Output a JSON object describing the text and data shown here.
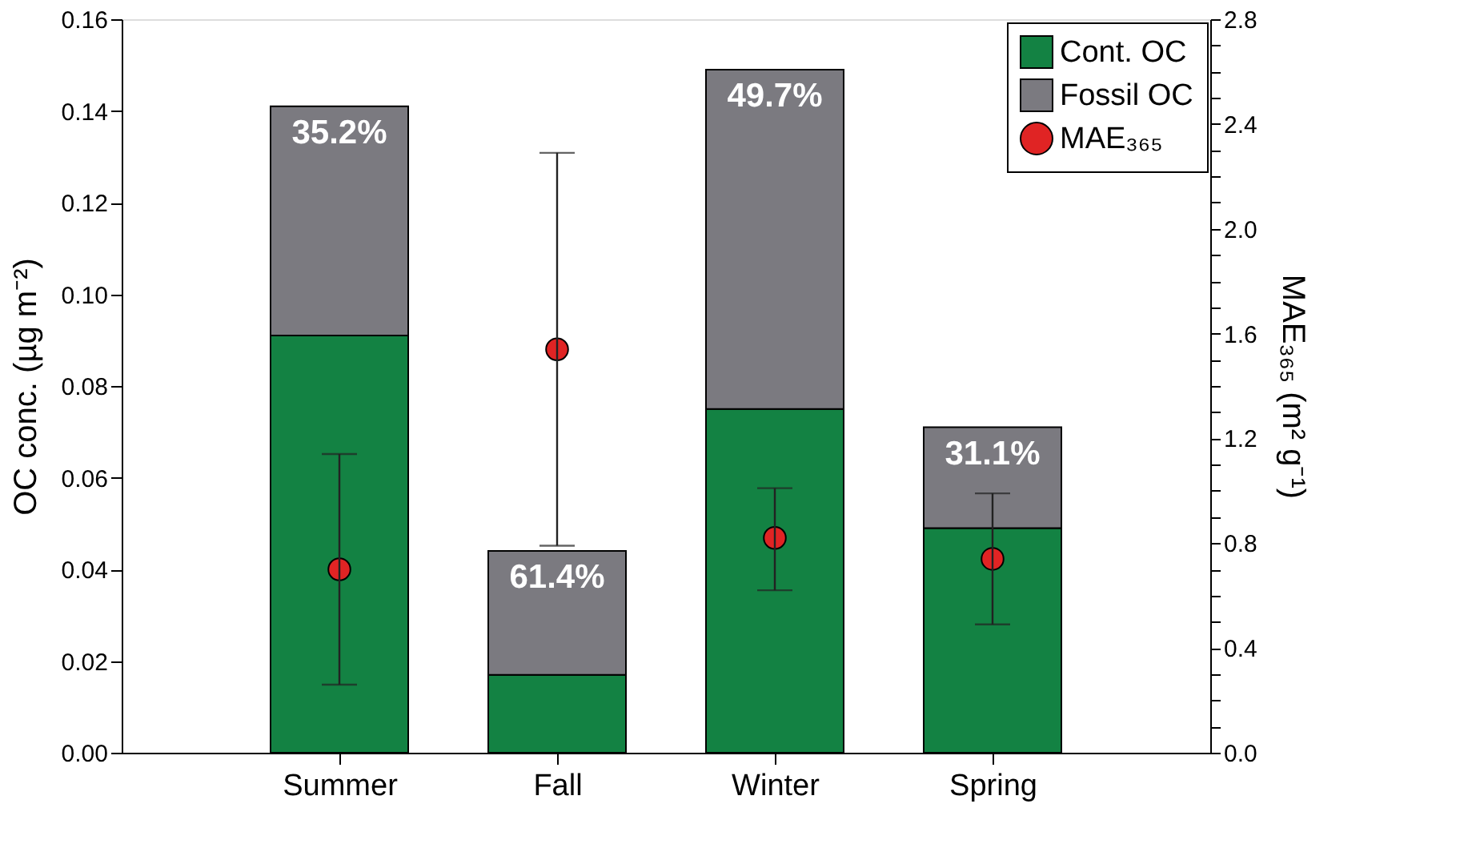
{
  "chart_data": {
    "type": "bar",
    "stacked": true,
    "categories": [
      "Summer",
      "Fall",
      "Winter",
      "Spring"
    ],
    "ylabel": "OC conc. (µg m⁻²)",
    "y2label": "MAE₃₆₅ (m² g⁻¹)",
    "ylim": [
      0,
      0.16
    ],
    "yticks": [
      {
        "value": 0,
        "label": "0.00"
      },
      {
        "value": 0.02,
        "label": "0.02"
      },
      {
        "value": 0.04,
        "label": "0.04"
      },
      {
        "value": 0.06,
        "label": "0.06"
      },
      {
        "value": 0.08,
        "label": "0.08"
      },
      {
        "value": 0.1,
        "label": "0.10"
      },
      {
        "value": 0.12,
        "label": "0.12"
      },
      {
        "value": 0.14,
        "label": "0.14"
      },
      {
        "value": 0.16,
        "label": "0.16"
      }
    ],
    "y2lim": [
      0,
      2.8
    ],
    "y2ticks": [
      {
        "value": 0,
        "label": "0.0"
      },
      {
        "value": 0.1,
        "label": null
      },
      {
        "value": 0.2,
        "label": null
      },
      {
        "value": 0.3,
        "label": null
      },
      {
        "value": 0.4,
        "label": "0.4"
      },
      {
        "value": 0.5,
        "label": null
      },
      {
        "value": 0.6,
        "label": null
      },
      {
        "value": 0.7,
        "label": null
      },
      {
        "value": 0.8,
        "label": "0.8"
      },
      {
        "value": 0.9,
        "label": null
      },
      {
        "value": 1.0,
        "label": null
      },
      {
        "value": 1.1,
        "label": null
      },
      {
        "value": 1.2,
        "label": "1.2"
      },
      {
        "value": 1.3,
        "label": null
      },
      {
        "value": 1.4,
        "label": null
      },
      {
        "value": 1.5,
        "label": null
      },
      {
        "value": 1.6,
        "label": "1.6"
      },
      {
        "value": 1.7,
        "label": null
      },
      {
        "value": 1.8,
        "label": null
      },
      {
        "value": 1.9,
        "label": null
      },
      {
        "value": 2.0,
        "label": "2.0"
      },
      {
        "value": 2.1,
        "label": null
      },
      {
        "value": 2.2,
        "label": null
      },
      {
        "value": 2.3,
        "label": null
      },
      {
        "value": 2.4,
        "label": "2.4"
      },
      {
        "value": 2.5,
        "label": null
      },
      {
        "value": 2.6,
        "label": null
      },
      {
        "value": 2.7,
        "label": null
      },
      {
        "value": 2.8,
        "label": "2.8"
      }
    ],
    "series": [
      {
        "name": "Cont. OC",
        "color": "#138243",
        "values": [
          0.091,
          0.017,
          0.075,
          0.049
        ]
      },
      {
        "name": "Fossil OC",
        "color": "#7b7a80",
        "values": [
          0.05,
          0.027,
          0.074,
          0.022
        ]
      },
      {
        "name": "MAE₃₆₅",
        "type": "scatter",
        "axis": "y2",
        "color": "#e02424",
        "marker": "circle",
        "values": [
          0.7,
          1.54,
          0.82,
          0.74
        ],
        "errors": [
          [
            0.26,
            1.14
          ],
          [
            0.79,
            2.29
          ],
          [
            0.62,
            1.01
          ],
          [
            0.49,
            0.99
          ]
        ]
      }
    ],
    "annotations": [
      {
        "text": "35.2%",
        "x": "Summer",
        "y": 0.141
      },
      {
        "text": "61.4%",
        "x": "Fall",
        "y": 0.044
      },
      {
        "text": "49.7%",
        "x": "Winter",
        "y": 0.149
      },
      {
        "text": "31.1%",
        "x": "Spring",
        "y": 0.071
      }
    ],
    "legend": "top right",
    "grid": false
  }
}
